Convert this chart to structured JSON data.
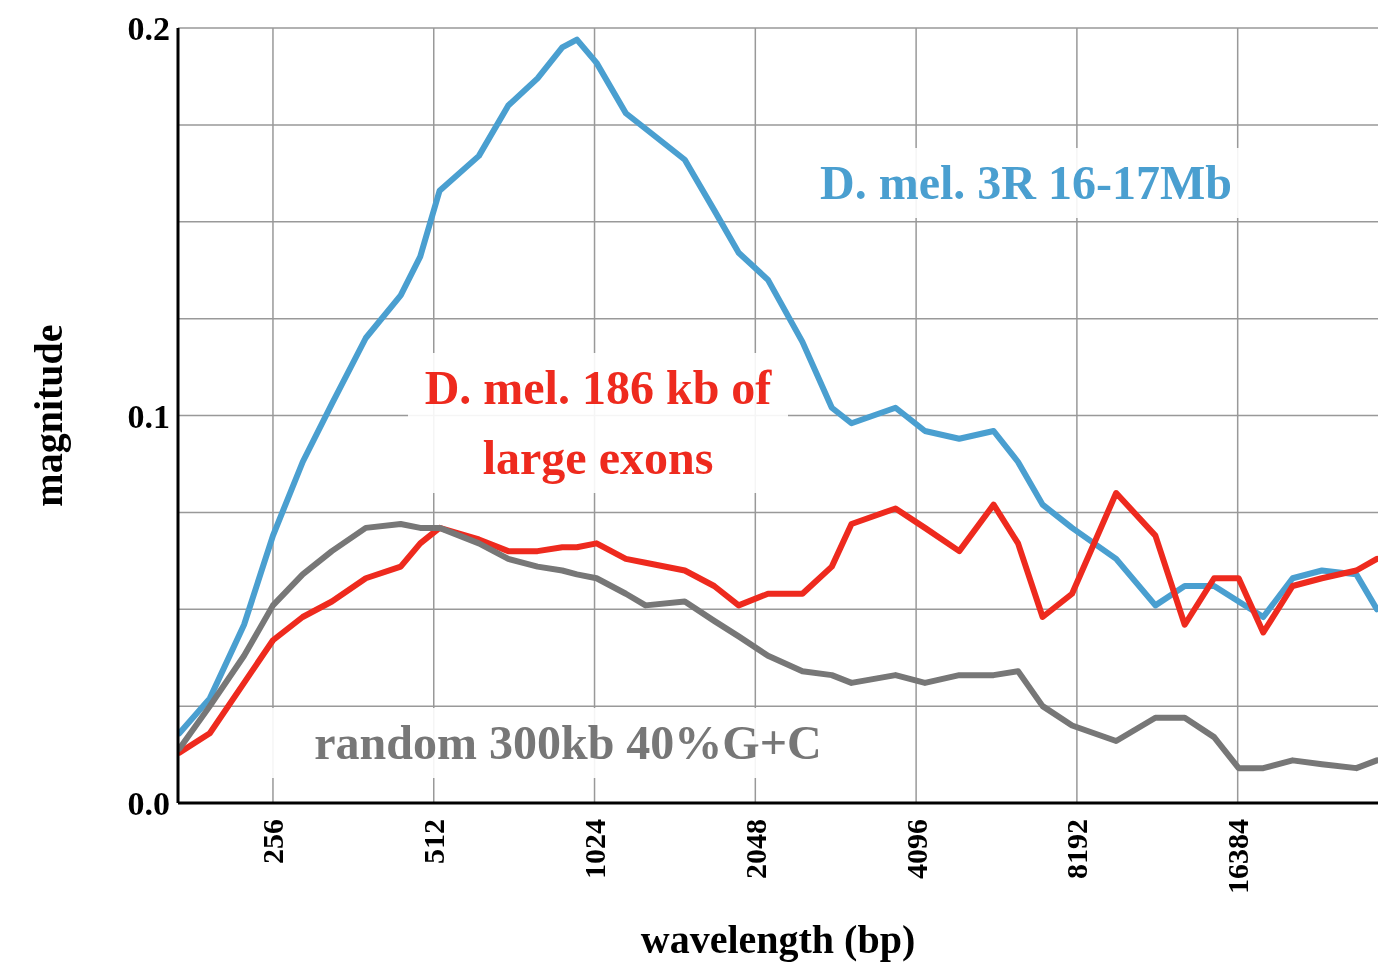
{
  "chart_data": {
    "type": "line",
    "xlabel": "wavelength (bp)",
    "ylabel": "magnitude",
    "log": "x",
    "grid": true,
    "legend": false,
    "marker": "none",
    "line_style": "solid",
    "x": [
      171,
      195,
      226,
      256,
      291,
      330,
      382,
      444,
      483,
      525,
      622,
      706,
      801,
      891,
      949,
      1033,
      1172,
      1276,
      1511,
      1715,
      1906,
      2163,
      2509,
      2848,
      3100,
      3748,
      4255,
      4933,
      5721,
      6357,
      7066,
      8023,
      9702,
      11491,
      13039,
      14800,
      16452,
      18294,
      20761,
      23560,
      27326,
      29856
    ],
    "xlim": [
      170,
      30000
    ],
    "xticks": [
      256,
      512,
      1024,
      2048,
      4096,
      8192,
      16384
    ],
    "ylim": [
      0,
      0.2
    ],
    "yticks": [
      {
        "value": 0,
        "label": "0.0"
      },
      {
        "value": 0.025,
        "label": null
      },
      {
        "value": 0.05,
        "label": null
      },
      {
        "value": 0.075,
        "label": null
      },
      {
        "value": 0.1,
        "label": "0.1"
      },
      {
        "value": 0.125,
        "label": null
      },
      {
        "value": 0.15,
        "label": null
      },
      {
        "value": 0.175,
        "label": null
      },
      {
        "value": 0.2,
        "label": "0.2"
      }
    ],
    "series": [
      {
        "name": "D. mel. 3R 16-17Mb",
        "color": "#4a9fd0",
        "values": [
          0.018,
          0.027,
          0.046,
          0.069,
          0.088,
          0.103,
          0.12,
          0.131,
          0.141,
          0.158,
          0.167,
          0.18,
          0.187,
          0.195,
          0.197,
          0.191,
          0.178,
          0.174,
          0.166,
          0.153,
          0.142,
          0.135,
          0.119,
          0.102,
          0.098,
          0.102,
          0.096,
          0.094,
          0.096,
          0.088,
          0.077,
          0.071,
          0.063,
          0.051,
          0.056,
          0.056,
          0.052,
          0.048,
          0.058,
          0.06,
          0.059,
          0.05
        ]
      },
      {
        "name": "D. mel. 186 kb of large exons",
        "color": "#ee2a1e",
        "values": [
          0.013,
          0.018,
          0.031,
          0.042,
          0.048,
          0.052,
          0.058,
          0.061,
          0.067,
          0.071,
          0.068,
          0.065,
          0.065,
          0.066,
          0.066,
          0.067,
          0.063,
          0.062,
          0.06,
          0.056,
          0.051,
          0.054,
          0.054,
          0.061,
          0.072,
          0.076,
          0.071,
          0.065,
          0.077,
          0.067,
          0.048,
          0.054,
          0.08,
          0.069,
          0.046,
          0.058,
          0.058,
          0.044,
          0.056,
          0.058,
          0.06,
          0.063
        ]
      },
      {
        "name": "random 300kb 40%G+C",
        "color": "#777777",
        "values": [
          0.014,
          0.025,
          0.038,
          0.051,
          0.059,
          0.065,
          0.071,
          0.072,
          0.071,
          0.071,
          0.067,
          0.063,
          0.061,
          0.06,
          0.059,
          0.058,
          0.054,
          0.051,
          0.052,
          0.047,
          0.043,
          0.038,
          0.034,
          0.033,
          0.031,
          0.033,
          0.031,
          0.033,
          0.033,
          0.034,
          0.025,
          0.02,
          0.016,
          0.022,
          0.022,
          0.017,
          0.009,
          0.009,
          0.011,
          0.01,
          0.009,
          0.011
        ]
      }
    ]
  }
}
